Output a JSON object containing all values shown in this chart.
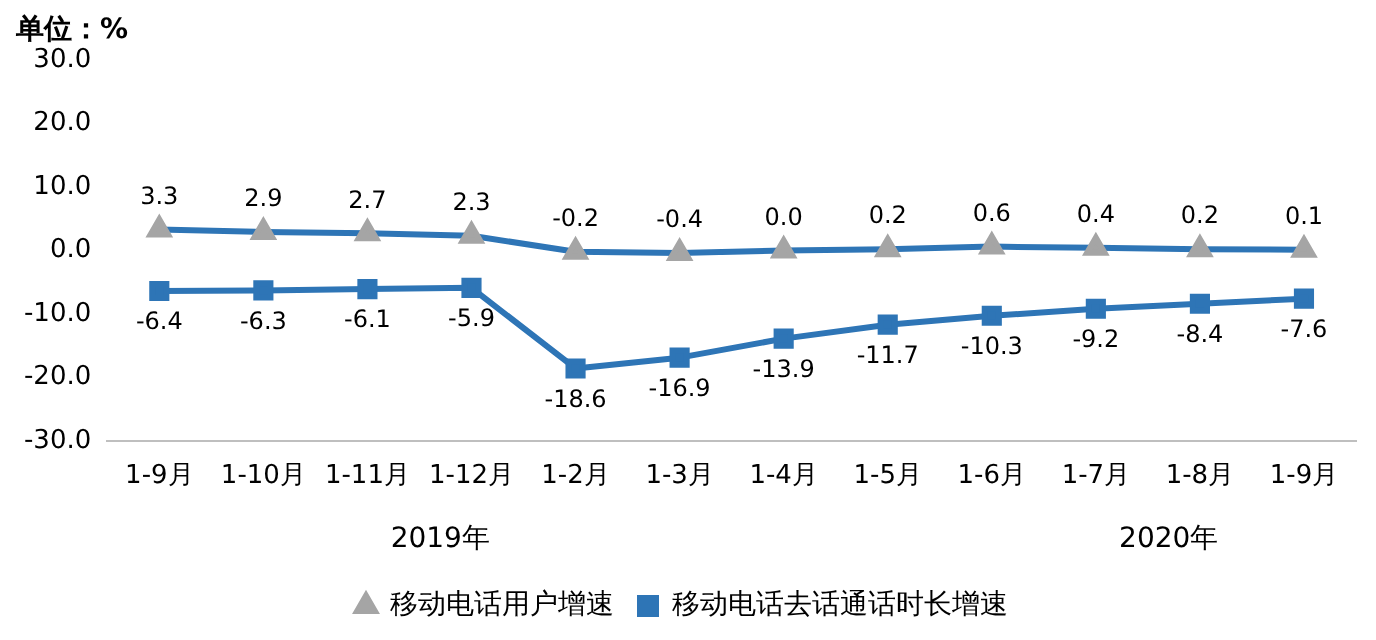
{
  "chart_data": {
    "type": "line",
    "categories": [
      "1-9月",
      "1-10月",
      "1-11月",
      "1-12月",
      "1-2月",
      "1-3月",
      "1-4月",
      "1-5月",
      "1-6月",
      "1-7月",
      "1-8月",
      "1-9月"
    ],
    "series": [
      {
        "name": "移动电话用户增速",
        "color": "#2e75b6",
        "marker": "triangle",
        "values": [
          3.3,
          2.9,
          2.7,
          2.3,
          -0.2,
          -0.4,
          0.0,
          0.2,
          0.6,
          0.4,
          0.2,
          0.1
        ],
        "value_labels": [
          "3.3",
          "2.9",
          "2.7",
          "2.3",
          "-0.2",
          "-0.4",
          "0.0",
          "0.2",
          "0.6",
          "0.4",
          "0.2",
          "0.1"
        ]
      },
      {
        "name": "移动电话去话通话时长增速",
        "color": "#2e75b6",
        "marker": "square",
        "values": [
          -6.4,
          -6.3,
          -6.1,
          -5.9,
          -18.6,
          -16.9,
          -13.9,
          -11.7,
          -10.3,
          -9.2,
          -8.4,
          -7.6
        ],
        "value_labels": [
          "-6.4",
          "-6.3",
          "-6.1",
          "-5.9",
          "-18.6",
          "-16.9",
          "-13.9",
          "-11.7",
          "-10.3",
          "-9.2",
          "-8.4",
          "-7.6"
        ]
      }
    ],
    "ylim": [
      -30,
      30
    ],
    "yticks": [
      {
        "value": -30,
        "label": "-30.0"
      },
      {
        "value": -20,
        "label": "-20.0"
      },
      {
        "value": -10,
        "label": "-10.0"
      },
      {
        "value": 0,
        "label": "0.0"
      },
      {
        "value": 10,
        "label": "10.0"
      },
      {
        "value": 20,
        "label": "20.0"
      },
      {
        "value": 30,
        "label": "30.0"
      }
    ],
    "grid": false,
    "legend": "bottom",
    "annotations": [
      "单位：%",
      "2019年",
      "2020年"
    ]
  }
}
